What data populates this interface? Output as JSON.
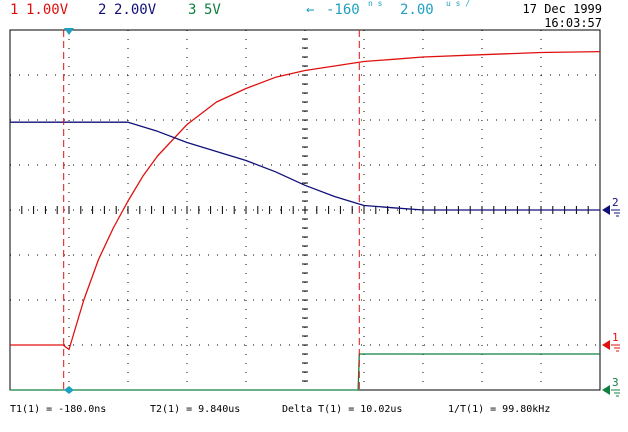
{
  "header": {
    "ch1_number": "1",
    "ch1_scale": "1.00V",
    "ch2_number": "2",
    "ch2_scale": "2.00V",
    "ch3_number": "3",
    "ch3_scale": "5V",
    "trigger_delay": "-160",
    "trigger_delay_unit": "n s",
    "timebase": "2.00",
    "timebase_unit": "u s /",
    "date": "17 Dec 1999",
    "time": "16:03:57"
  },
  "footer": {
    "t1": "T1(1) = -180.0ns",
    "t2": "T2(1) = 9.840us",
    "delta_t": "Delta T(1) = 10.02us",
    "inv_t": "1/T(1) = 99.80kHz"
  },
  "colors": {
    "ch1": "#e01010",
    "ch2": "#10107a",
    "ch3": "#108040",
    "trigger": "#20a0c0",
    "grid": "#000000"
  },
  "chart_data": {
    "type": "line",
    "title": "",
    "xlabel": "",
    "ylabel": "",
    "xlim": [
      -2,
      18
    ],
    "ylim": [
      -4,
      4
    ],
    "x_unit": "us",
    "y_unit": "div",
    "grid": true,
    "grid_divisions": {
      "x": 10,
      "y": 8
    },
    "series": [
      {
        "name": "1",
        "color": "#e01010",
        "units": "V",
        "scale_per_div": 1.0,
        "ground_level_div": -3.0,
        "x": [
          -2,
          -1,
          -0.2,
          0,
          0.5,
          1,
          1.5,
          2,
          2.5,
          3,
          4,
          5,
          6,
          7,
          8,
          9,
          10,
          11,
          12,
          14,
          16,
          18
        ],
        "y": [
          -3.0,
          -3.0,
          -3.0,
          -3.1,
          -2.0,
          -1.1,
          -0.4,
          0.2,
          0.75,
          1.2,
          1.9,
          2.4,
          2.7,
          2.95,
          3.1,
          3.2,
          3.3,
          3.35,
          3.4,
          3.45,
          3.5,
          3.52
        ]
      },
      {
        "name": "2",
        "color": "#10107a",
        "units": "V",
        "scale_per_div": 2.0,
        "ground_level_div": 0.0,
        "x": [
          -2,
          0,
          2,
          3,
          4,
          5,
          6,
          7,
          8,
          9,
          10,
          11,
          12,
          14,
          16,
          18
        ],
        "y": [
          1.95,
          1.95,
          1.95,
          1.75,
          1.5,
          1.3,
          1.1,
          0.85,
          0.55,
          0.3,
          0.1,
          0.05,
          0.0,
          0.0,
          0.0,
          0.0
        ]
      },
      {
        "name": "3",
        "color": "#108040",
        "units": "V",
        "scale_per_div": 5.0,
        "ground_level_div": -4.0,
        "x": [
          -2,
          9.8,
          9.84,
          10,
          18
        ],
        "y": [
          -4.0,
          -4.0,
          -3.2,
          -3.2,
          -3.2
        ]
      }
    ],
    "cursors": [
      {
        "label": "T1",
        "x": -0.18
      },
      {
        "label": "T2",
        "x": 9.84
      }
    ]
  }
}
